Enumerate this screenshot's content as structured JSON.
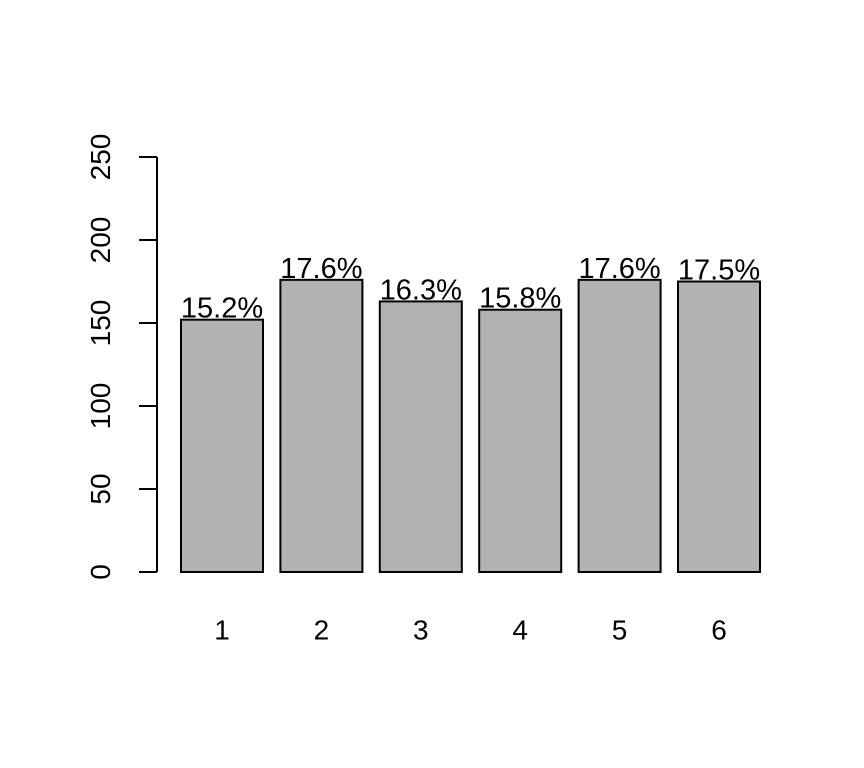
{
  "chart_data": {
    "type": "bar",
    "categories": [
      "1",
      "2",
      "3",
      "4",
      "5",
      "6"
    ],
    "values": [
      152,
      176,
      163,
      158,
      176,
      175
    ],
    "data_labels": [
      "15.2%",
      "17.6%",
      "16.3%",
      "15.8%",
      "17.6%",
      "17.5%"
    ],
    "y_ticks": [
      0,
      50,
      100,
      150,
      200,
      250
    ],
    "ylim": [
      0,
      250
    ],
    "title": "",
    "xlabel": "",
    "ylabel": "",
    "grid": false,
    "bar_color": "#b2b2b2",
    "bar_edge_color": "#000000"
  }
}
